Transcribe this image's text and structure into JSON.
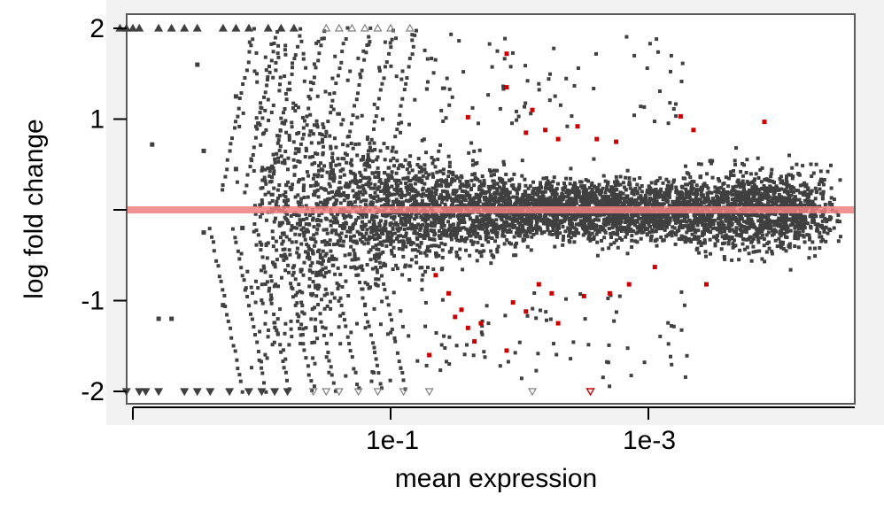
{
  "chart_data": {
    "type": "scatter",
    "title": "",
    "xlabel": "mean expression",
    "ylabel": "log fold change",
    "x_scale": "log",
    "x_ticks": [
      {
        "label": "1e-1"
      },
      {
        "label": "1e-3"
      }
    ],
    "y_ticks": [
      {
        "value": 2,
        "label": "2"
      },
      {
        "value": 1,
        "label": "1"
      },
      {
        "value": 0,
        "label": ""
      },
      {
        "value": -1,
        "label": "-1"
      },
      {
        "value": -2,
        "label": "-2"
      }
    ],
    "ylim": [
      -2.2,
      2.2
    ],
    "reference_line": {
      "y": 0,
      "color": "#f08080"
    },
    "grid": false,
    "legend": "none",
    "colors": {
      "points": "#404040",
      "significant": "#cc0000",
      "reference_line": "#f08080",
      "clipped_markers": "#808080"
    },
    "series": [
      {
        "role": "significant",
        "points": [
          [
            0.9,
            1.72
          ],
          [
            0.9,
            1.35
          ],
          [
            0.6,
            1.02
          ],
          [
            1.1,
            1.1
          ],
          [
            1.05,
            0.85
          ],
          [
            1.2,
            0.88
          ],
          [
            1.3,
            0.78
          ],
          [
            1.45,
            0.92
          ],
          [
            1.6,
            0.78
          ],
          [
            1.75,
            0.75
          ],
          [
            2.25,
            1.03
          ],
          [
            2.35,
            0.88
          ],
          [
            2.9,
            0.97
          ],
          [
            0.35,
            -0.72
          ],
          [
            0.45,
            -0.92
          ],
          [
            0.55,
            -1.1
          ],
          [
            0.5,
            -1.18
          ],
          [
            0.6,
            -1.3
          ],
          [
            0.7,
            -1.25
          ],
          [
            0.65,
            -1.45
          ],
          [
            0.3,
            -1.6
          ],
          [
            0.9,
            -1.55
          ],
          [
            0.95,
            -1.02
          ],
          [
            1.05,
            -1.12
          ],
          [
            1.15,
            -0.82
          ],
          [
            1.25,
            -0.92
          ],
          [
            1.3,
            -1.25
          ],
          [
            1.5,
            -0.95
          ],
          [
            1.7,
            -0.92
          ],
          [
            1.85,
            -0.82
          ],
          [
            2.05,
            -0.63
          ],
          [
            2.45,
            -0.82
          ]
        ]
      }
    ],
    "clipped_up": [
      -2.1,
      -2.05,
      -2.0,
      -1.95,
      -1.8,
      -1.7,
      -1.6,
      -1.5,
      -1.3,
      -1.2,
      -1.1,
      -0.95,
      -0.85,
      -0.75,
      -0.5,
      -0.4,
      -0.3,
      -0.2,
      -0.1,
      0.0,
      0.15
    ],
    "clipped_down": [
      -2.05,
      -1.95,
      -1.9,
      -1.8,
      -1.6,
      -1.5,
      -1.4,
      -1.25,
      -1.1,
      -1.0,
      -0.9,
      -0.8,
      -0.6,
      -0.5,
      -0.4,
      -0.25,
      -0.1,
      0.1,
      0.3,
      1.1
    ]
  }
}
